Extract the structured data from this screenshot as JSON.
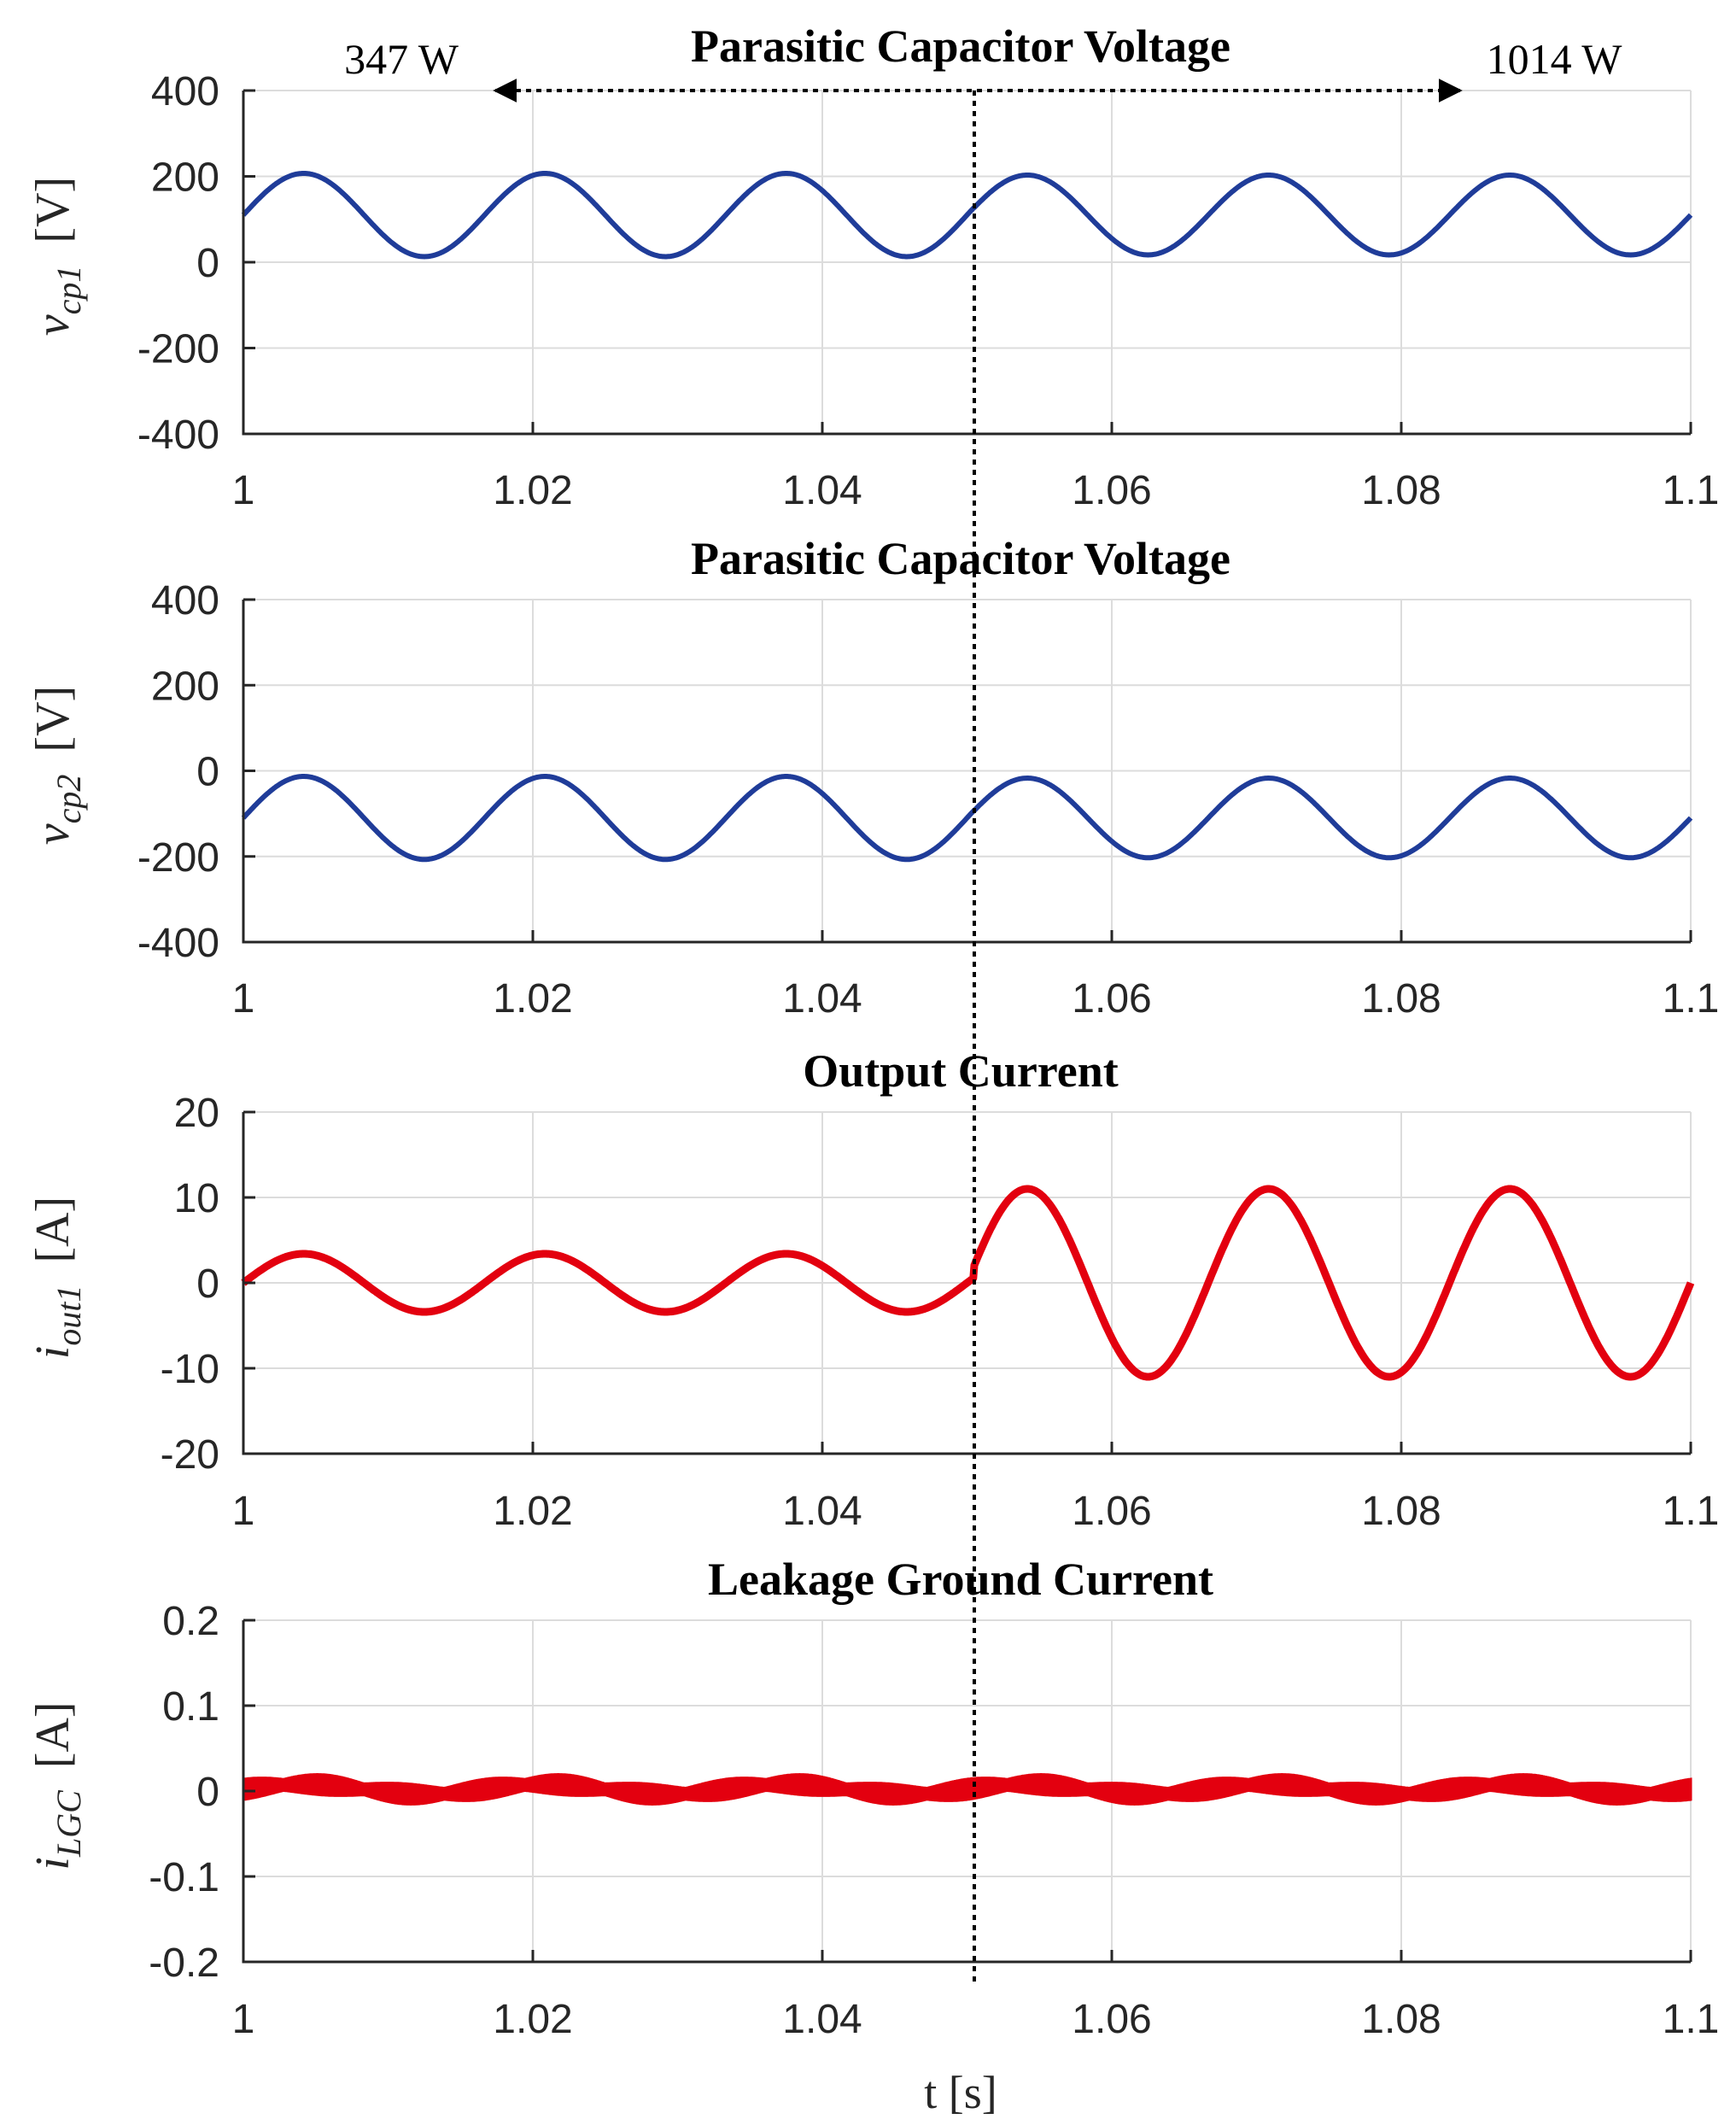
{
  "chart_data": [
    {
      "type": "line",
      "title": "Parasitic Capacitor Voltage",
      "ylabel_var": "v",
      "ylabel_sub": "cp1",
      "ylabel_unit": "[V]",
      "xlabel": "",
      "xlim": [
        1,
        1.1
      ],
      "ylim": [
        -400,
        400
      ],
      "yticks": [
        "400",
        "200",
        "0",
        "-200",
        "-400"
      ],
      "xticks": [
        "1",
        "1.02",
        "1.04",
        "1.06",
        "1.08",
        "1.1"
      ],
      "grid": true,
      "series": [
        {
          "name": "v_cp1",
          "color": "#1f3c99",
          "kind": "sine",
          "offset": 110,
          "amplitude_before": 97,
          "amplitude_after": 93,
          "frequency_hz": 60,
          "phase_deg": 0
        }
      ]
    },
    {
      "type": "line",
      "title": "Parasitic Capacitor Voltage",
      "ylabel_var": "v",
      "ylabel_sub": "cp2",
      "ylabel_unit": "[V]",
      "xlabel": "",
      "xlim": [
        1,
        1.1
      ],
      "ylim": [
        -400,
        400
      ],
      "yticks": [
        "400",
        "200",
        "0",
        "-200",
        "-400"
      ],
      "xticks": [
        "1",
        "1.02",
        "1.04",
        "1.06",
        "1.08",
        "1.1"
      ],
      "grid": true,
      "series": [
        {
          "name": "v_cp2",
          "color": "#1f3c99",
          "kind": "sine",
          "offset": -110,
          "amplitude_before": 97,
          "amplitude_after": 93,
          "frequency_hz": 60,
          "phase_deg": 0
        }
      ]
    },
    {
      "type": "line",
      "title": "Output Current",
      "ylabel_var": "i",
      "ylabel_sub": "out1",
      "ylabel_unit": "[A]",
      "xlabel": "",
      "xlim": [
        1,
        1.1
      ],
      "ylim": [
        -20,
        20
      ],
      "yticks": [
        "20",
        "10",
        "0",
        "-10",
        "-20"
      ],
      "xticks": [
        "1",
        "1.02",
        "1.04",
        "1.06",
        "1.08",
        "1.1"
      ],
      "grid": true,
      "series": [
        {
          "name": "i_out1",
          "color": "#e3000f",
          "kind": "sine",
          "offset": 0,
          "amplitude_before": 3.4,
          "amplitude_after": 11,
          "frequency_hz": 60,
          "phase_deg": 0
        }
      ]
    },
    {
      "type": "line",
      "title": "Leakage Ground Current",
      "ylabel_var": "i",
      "ylabel_sub": "LGC",
      "ylabel_unit": "[A]",
      "xlabel": "t [s]",
      "xlim": [
        1,
        1.1
      ],
      "ylim": [
        -0.2,
        0.2
      ],
      "yticks": [
        "0.2",
        "0.1",
        "0",
        "-0.1",
        "-0.2"
      ],
      "xticks": [
        "1",
        "1.02",
        "1.04",
        "1.06",
        "1.08",
        "1.1"
      ],
      "grid": true,
      "series": [
        {
          "name": "i_LGC",
          "color": "#e3000f",
          "kind": "ripple",
          "offset": 0.002,
          "ripple_amplitude": 0.012,
          "ripple_frequency_hz": 180
        }
      ]
    }
  ],
  "annotations": {
    "left_power": "347 W",
    "right_power": "1014 W",
    "step_time_s": 1.0505
  }
}
